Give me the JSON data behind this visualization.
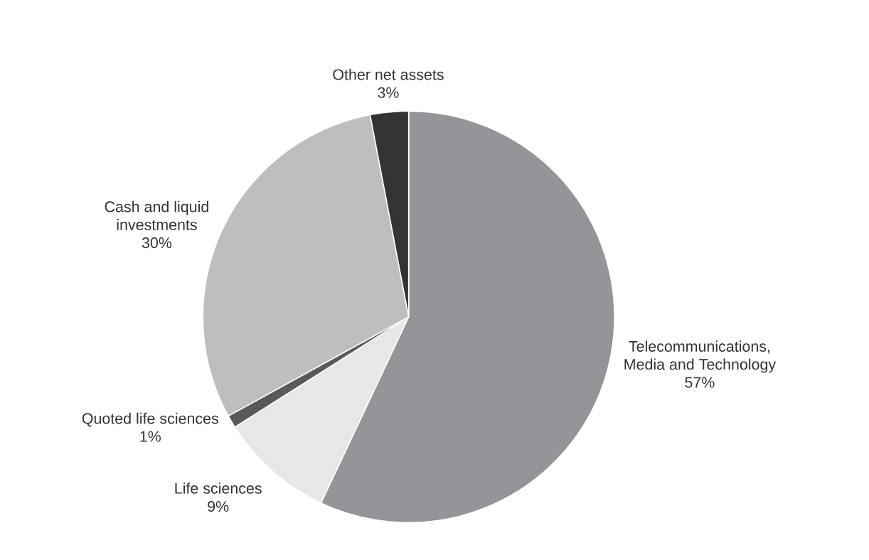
{
  "chart_data": {
    "type": "pie",
    "categories": [
      "Telecommunications, Media and Technology",
      "Life sciences",
      "Quoted life sciences",
      "Cash and liquid investments",
      "Other net assets"
    ],
    "values": [
      57,
      9,
      1,
      30,
      3
    ],
    "value_labels": [
      "57%",
      "9%",
      "1%",
      "30%",
      "3%"
    ],
    "colors": [
      "#939598",
      "#e6e7e8",
      "#58595b",
      "#bcbec0",
      "#333333"
    ]
  }
}
